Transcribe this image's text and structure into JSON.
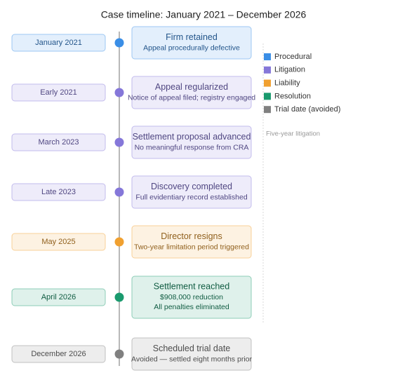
{
  "title": "Case timeline: January 2021 – December 2026",
  "legend": [
    {
      "label": "Procedural",
      "color": "#3a8ee6"
    },
    {
      "label": "Litigation",
      "color": "#8577d9"
    },
    {
      "label": "Liability",
      "color": "#f0a030"
    },
    {
      "label": "Resolution",
      "color": "#1a9a6e"
    },
    {
      "label": "Trial date (avoided)",
      "color": "#808080"
    }
  ],
  "annotation": "Five-year litigation",
  "events": [
    {
      "date": "January 2021",
      "title": "Firm retained",
      "details": [
        "Appeal procedurally defective"
      ],
      "color": "#3a8ee6"
    },
    {
      "date": "Early 2021",
      "title": "Appeal regularized",
      "details": [
        "Notice of appeal filed; registry engaged"
      ],
      "color": "#8577d9"
    },
    {
      "date": "March 2023",
      "title": "Settlement proposal advanced",
      "details": [
        "No meaningful response from CRA"
      ],
      "color": "#8577d9"
    },
    {
      "date": "Late 2023",
      "title": "Discovery completed",
      "details": [
        "Full evidentiary record established"
      ],
      "color": "#8577d9"
    },
    {
      "date": "May 2025",
      "title": "Director resigns",
      "details": [
        "Two-year limitation period triggered"
      ],
      "color": "#f0a030"
    },
    {
      "date": "April 2026",
      "title": "Settlement reached",
      "details": [
        "$908,000 reduction",
        "All penalties eliminated"
      ],
      "color": "#1a9a6e"
    },
    {
      "date": "December 2026",
      "title": "Scheduled trial date",
      "details": [
        "Avoided — settled eight months prior"
      ],
      "color": "#808080"
    }
  ]
}
